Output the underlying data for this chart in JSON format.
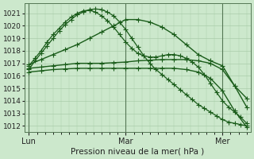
{
  "xlabel": "Pression niveau de la mer( hPa )",
  "background_color": "#cce8cc",
  "grid_color": "#aaccaa",
  "plot_color": "#1a5c1a",
  "ylim": [
    1011.5,
    1021.8
  ],
  "yticks": [
    1012,
    1013,
    1014,
    1015,
    1016,
    1017,
    1018,
    1019,
    1020,
    1021
  ],
  "xlim": [
    -2,
    110
  ],
  "day_positions": [
    0,
    48,
    96
  ],
  "day_labels": [
    "Lun",
    "Mar",
    "Mer"
  ],
  "series": [
    {
      "x": [
        0,
        3,
        6,
        9,
        12,
        15,
        18,
        21,
        24,
        27,
        30,
        33,
        36,
        39,
        42,
        45,
        48,
        51,
        54,
        57,
        60,
        63,
        66,
        69,
        72,
        75,
        78,
        81,
        84,
        87,
        90,
        93,
        96,
        99,
        102,
        105,
        108
      ],
      "y": [
        1016.5,
        1017.2,
        1017.8,
        1018.4,
        1019.0,
        1019.6,
        1020.1,
        1020.5,
        1020.9,
        1021.1,
        1021.3,
        1021.35,
        1021.3,
        1021.1,
        1020.8,
        1020.3,
        1019.7,
        1019.0,
        1018.3,
        1017.6,
        1017.0,
        1016.5,
        1016.1,
        1015.7,
        1015.3,
        1014.9,
        1014.5,
        1014.1,
        1013.7,
        1013.4,
        1013.1,
        1012.8,
        1012.5,
        1012.3,
        1012.2,
        1012.1,
        1012.0
      ],
      "lw": 0.9,
      "marker": "+",
      "ms": 4,
      "ls": "-"
    },
    {
      "x": [
        0,
        3,
        6,
        9,
        12,
        15,
        18,
        21,
        24,
        27,
        30,
        33,
        36,
        39,
        42,
        45,
        48,
        51,
        54,
        57,
        60,
        63,
        66,
        69,
        72,
        75,
        78,
        81,
        84,
        87,
        90,
        93,
        96,
        99,
        102,
        105,
        108
      ],
      "y": [
        1016.8,
        1017.4,
        1018.0,
        1018.7,
        1019.3,
        1019.8,
        1020.3,
        1020.7,
        1021.0,
        1021.2,
        1021.25,
        1021.1,
        1020.8,
        1020.4,
        1019.9,
        1019.3,
        1018.7,
        1018.2,
        1017.8,
        1017.6,
        1017.5,
        1017.5,
        1017.6,
        1017.7,
        1017.7,
        1017.6,
        1017.4,
        1017.1,
        1016.7,
        1016.1,
        1015.4,
        1014.7,
        1014.0,
        1013.5,
        1013.1,
        1012.7,
        1012.2
      ],
      "lw": 0.9,
      "marker": "+",
      "ms": 4,
      "ls": "-"
    },
    {
      "x": [
        0,
        6,
        12,
        18,
        24,
        30,
        36,
        42,
        48,
        54,
        60,
        66,
        72,
        78,
        84,
        90,
        96,
        102,
        108
      ],
      "y": [
        1016.9,
        1017.3,
        1017.7,
        1018.1,
        1018.5,
        1019.0,
        1019.5,
        1020.0,
        1020.5,
        1020.5,
        1020.3,
        1019.9,
        1019.3,
        1018.5,
        1017.7,
        1017.2,
        1016.8,
        1015.2,
        1014.2
      ],
      "lw": 1.0,
      "marker": "+",
      "ms": 4,
      "ls": "-"
    },
    {
      "x": [
        0,
        6,
        12,
        18,
        24,
        30,
        36,
        42,
        48,
        54,
        60,
        66,
        72,
        78,
        84,
        90,
        96,
        102,
        108
      ],
      "y": [
        1016.6,
        1016.7,
        1016.8,
        1016.9,
        1017.0,
        1017.0,
        1017.0,
        1017.05,
        1017.1,
        1017.2,
        1017.25,
        1017.3,
        1017.3,
        1017.3,
        1017.2,
        1017.0,
        1016.5,
        1015.2,
        1013.5
      ],
      "lw": 1.0,
      "marker": "+",
      "ms": 4,
      "ls": "-"
    },
    {
      "x": [
        0,
        6,
        12,
        18,
        24,
        30,
        36,
        42,
        48,
        54,
        60,
        66,
        72,
        78,
        84,
        90,
        96,
        102,
        108
      ],
      "y": [
        1016.3,
        1016.4,
        1016.5,
        1016.55,
        1016.6,
        1016.6,
        1016.6,
        1016.6,
        1016.6,
        1016.6,
        1016.6,
        1016.6,
        1016.6,
        1016.5,
        1016.3,
        1015.8,
        1014.8,
        1013.2,
        1011.9
      ],
      "lw": 1.0,
      "marker": "+",
      "ms": 4,
      "ls": "-"
    }
  ]
}
